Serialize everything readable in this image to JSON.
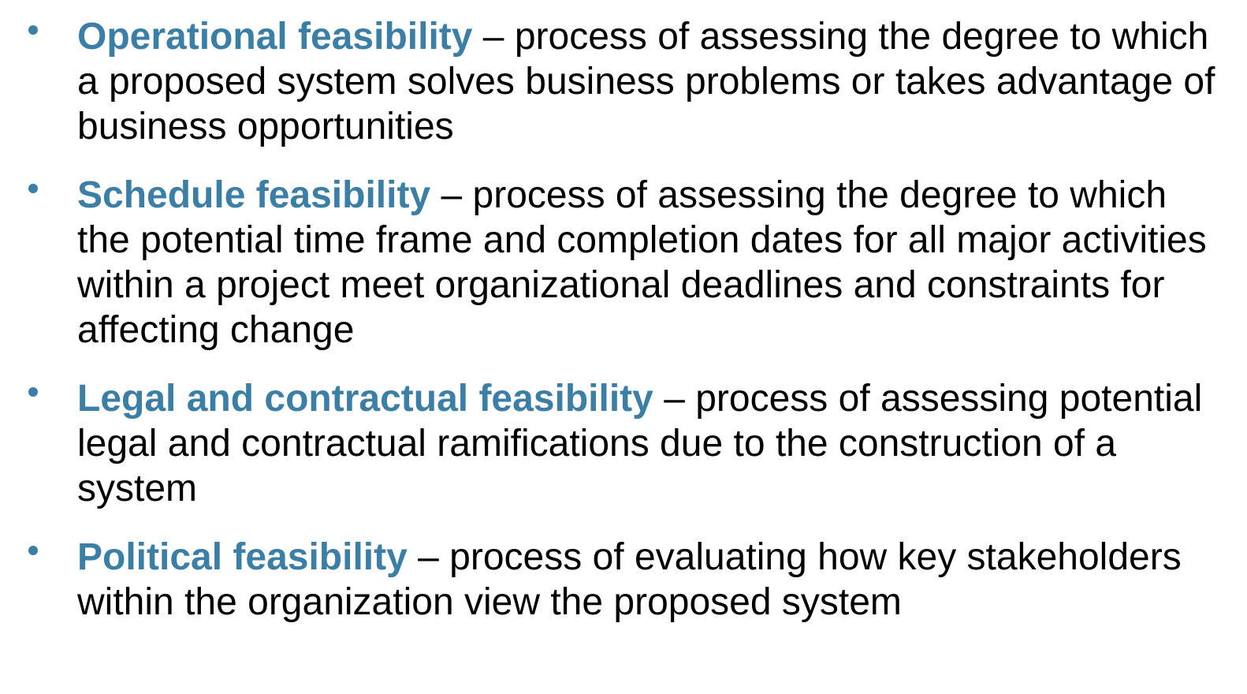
{
  "colors": {
    "accent": "#3b7fa6",
    "text": "#000000"
  },
  "bullets": [
    {
      "term": "Operational feasibility",
      "definition": " – process of assessing the degree to which a proposed system solves business problems or takes advantage of business opportunities"
    },
    {
      "term": "Schedule feasibility",
      "definition": " – process of assessing the degree to which the potential time frame and completion dates for all major activities within a project meet organizational deadlines and constraints for affecting change"
    },
    {
      "term": "Legal and contractual feasibility",
      "definition": " – process of assessing potential legal and contractual ramifications due to the construction of a system"
    },
    {
      "term": "Political feasibility",
      "definition": " – process of evaluating how key stakeholders within the organization view the proposed system"
    }
  ]
}
